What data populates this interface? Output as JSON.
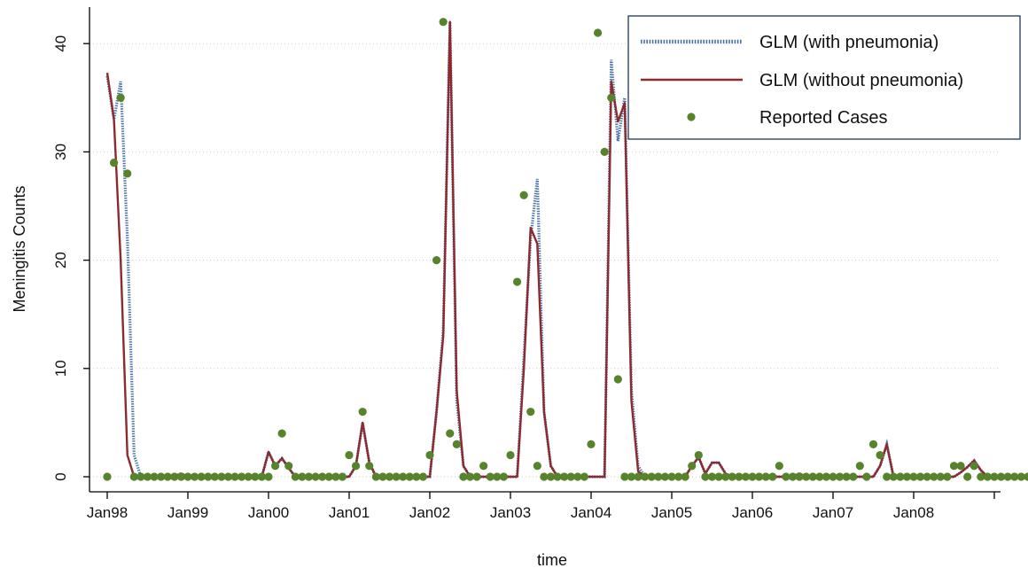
{
  "chart_data": {
    "type": "line",
    "xlabel": "time",
    "ylabel": "Meningitis Counts",
    "x_ticks": [
      "Jan98",
      "Jan99",
      "Jan00",
      "Jan01",
      "Jan02",
      "Jan03",
      "Jan04",
      "Jan05",
      "Jan06",
      "Jan07",
      "Jan08"
    ],
    "y_ticks": [
      "0",
      "10",
      "20",
      "30",
      "40"
    ],
    "ylim": [
      0,
      44
    ],
    "x_start": "Jan98",
    "x_end": "Dec08",
    "grid": "horizontal dotted",
    "legend_position": "top-right",
    "series": [
      {
        "name": "GLM (with pneumonia)",
        "style": "dotted",
        "color": "#4a72a8",
        "values": [
          37,
          33,
          36.5,
          22,
          2,
          0,
          0,
          0,
          0,
          0,
          0,
          0.3,
          0,
          0,
          0,
          0,
          0,
          0,
          0,
          0,
          0,
          0,
          0,
          0,
          2.3,
          1,
          1.7,
          0.8,
          0,
          0,
          0,
          0,
          0,
          0,
          0,
          0,
          0,
          1,
          5,
          1.3,
          0,
          0,
          0,
          0,
          0,
          0,
          0,
          0,
          0,
          6,
          13.5,
          42,
          7,
          1,
          0,
          0,
          0,
          0,
          0,
          0,
          0,
          0,
          11,
          22,
          27.5,
          6,
          1,
          0,
          0,
          0,
          0,
          0,
          0,
          0,
          0,
          38.5,
          31,
          35,
          8,
          1,
          0,
          0,
          0,
          0,
          0,
          0,
          0,
          1,
          1.8,
          0.3,
          1.3,
          1.3,
          0.3,
          0,
          0,
          0,
          0,
          0,
          0,
          0,
          0,
          0,
          0,
          0.3,
          0,
          0,
          0,
          0,
          0,
          0,
          0,
          0,
          0,
          0,
          0,
          1,
          3,
          0,
          0,
          0,
          0,
          0,
          0,
          0,
          0,
          0,
          0,
          0.4,
          0.9,
          1.5,
          0.6,
          0,
          0,
          0,
          0,
          0,
          0,
          0,
          0,
          0
        ]
      },
      {
        "name": "GLM (without pneumonia)",
        "style": "solid",
        "color": "#8c2b2f",
        "values": [
          37.3,
          33,
          20,
          2,
          0,
          0,
          0,
          0,
          0,
          0,
          0,
          0.3,
          0,
          0,
          0,
          0,
          0,
          0,
          0,
          0,
          0,
          0,
          0,
          0,
          2.3,
          1,
          1.7,
          0.8,
          0,
          0,
          0,
          0,
          0,
          0,
          0,
          0,
          0,
          1,
          5,
          1.3,
          0,
          0,
          0,
          0,
          0,
          0,
          0,
          0,
          0,
          6,
          13,
          42,
          8,
          1,
          0,
          0,
          0,
          0,
          0,
          0,
          0,
          0,
          10,
          23,
          21.5,
          6,
          1,
          0,
          0,
          0,
          0,
          0,
          0,
          0,
          0,
          36.5,
          32.8,
          34.5,
          7,
          0.5,
          0,
          0,
          0,
          0,
          0,
          0,
          0,
          1,
          1.8,
          0.3,
          1.3,
          1.3,
          0.3,
          0,
          0,
          0,
          0,
          0,
          0,
          0,
          0,
          0,
          0,
          0.3,
          0,
          0,
          0,
          0,
          0,
          0,
          0,
          0,
          0,
          0,
          0,
          1,
          3,
          0,
          0,
          0,
          0,
          0,
          0,
          0,
          0,
          0,
          0,
          0.4,
          0.9,
          1.5,
          0.6,
          0,
          0,
          0,
          0,
          0,
          0,
          0,
          0,
          0
        ]
      },
      {
        "name": "Reported Cases",
        "style": "points",
        "color": "#56832b",
        "values": [
          0,
          29,
          35,
          28,
          0,
          0,
          0,
          0,
          0,
          0,
          0,
          0,
          0,
          0,
          0,
          0,
          0,
          0,
          0,
          0,
          0,
          0,
          0,
          0,
          0,
          1,
          4,
          1,
          0,
          0,
          0,
          0,
          0,
          0,
          0,
          0,
          2,
          1,
          6,
          1,
          0,
          0,
          0,
          0,
          0,
          0,
          0,
          0,
          2,
          20,
          42,
          4,
          3,
          0,
          0,
          0,
          1,
          0,
          0,
          0,
          2,
          18,
          26,
          6,
          1,
          0,
          0,
          0,
          0,
          0,
          0,
          0,
          3,
          41,
          30,
          35,
          9,
          0,
          0,
          0,
          0,
          0,
          0,
          0,
          0,
          0,
          0,
          1,
          2,
          0,
          0,
          0,
          0,
          0,
          0,
          0,
          0,
          0,
          0,
          0,
          1,
          0,
          0,
          0,
          0,
          0,
          0,
          0,
          0,
          0,
          0,
          0,
          1,
          0,
          3,
          2,
          0,
          0,
          0,
          0,
          0,
          0,
          0,
          0,
          0,
          0,
          1,
          1,
          0,
          1,
          0,
          0,
          0,
          0,
          0,
          0,
          0,
          0,
          0
        ]
      }
    ]
  }
}
